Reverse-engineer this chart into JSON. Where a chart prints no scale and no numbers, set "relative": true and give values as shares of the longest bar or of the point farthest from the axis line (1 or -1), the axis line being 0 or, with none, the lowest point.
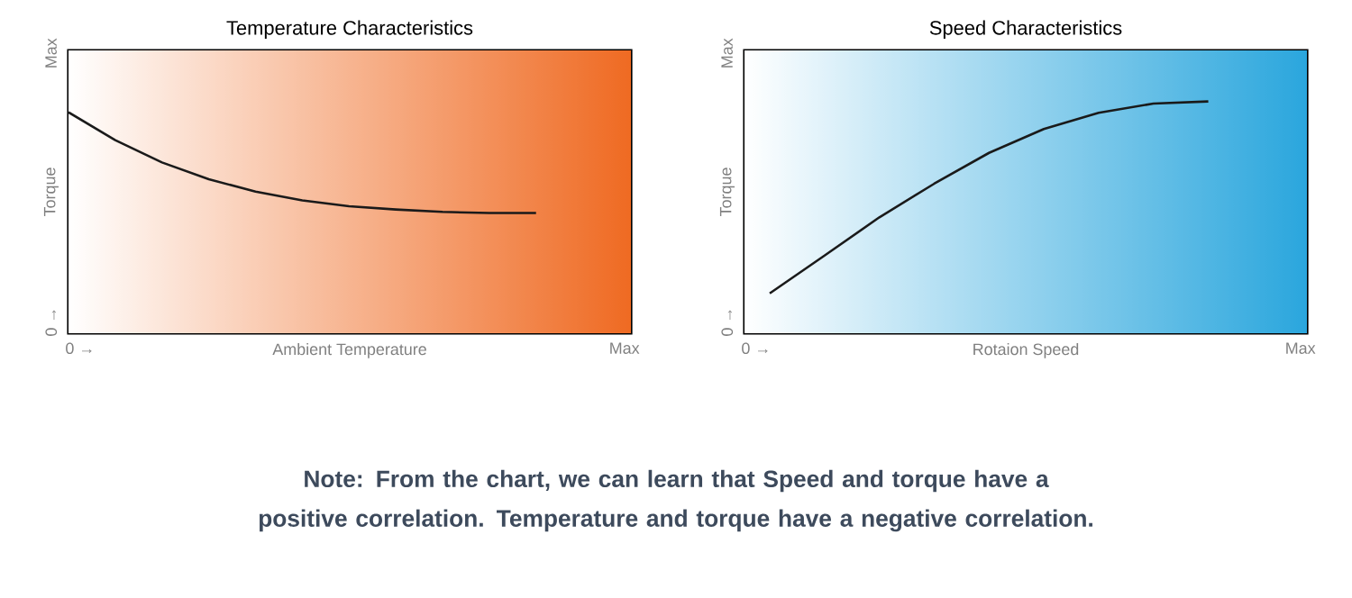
{
  "chart_data": [
    {
      "type": "line",
      "title": "Temperature Characteristics",
      "xlabel": "Ambient Temperature",
      "ylabel": "Torque",
      "color": "#1a1a1a",
      "marker": "none",
      "line_style": "solid",
      "relative": true,
      "categories": [
        null,
        null,
        null,
        null,
        null,
        null,
        null,
        null,
        null,
        null,
        null
      ],
      "values": [
        1,
        0.874,
        0.773,
        0.697,
        0.641,
        0.601,
        0.575,
        0.56,
        0.549,
        0.544,
        0.544
      ],
      "annotations": [
        "0 →",
        "Max",
        "0 →",
        "Max",
        "Note: From the chart, we can learn that Speed and torque have a positive correlation. Temperature and torque have a negative correlation."
      ]
    },
    {
      "type": "line",
      "title": "Speed Characteristics",
      "xlabel": "Rotaion Speed",
      "ylabel": "Torque",
      "color": "#1a1a1a",
      "marker": "none",
      "line_style": "solid",
      "relative": true,
      "categories": [
        null,
        null,
        null,
        null,
        null,
        null,
        null,
        null,
        null
      ],
      "values": [
        0.172,
        0.335,
        0.5,
        0.645,
        0.778,
        0.881,
        0.951,
        0.991,
        1
      ],
      "annotations": [
        "0 →",
        "Max",
        "0 →",
        "Max"
      ]
    }
  ]
}
